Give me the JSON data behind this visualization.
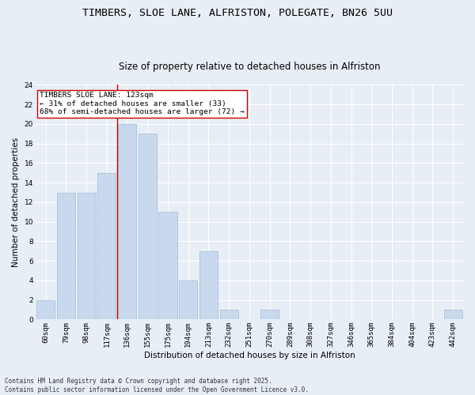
{
  "title": "TIMBERS, SLOE LANE, ALFRISTON, POLEGATE, BN26 5UU",
  "subtitle": "Size of property relative to detached houses in Alfriston",
  "xlabel": "Distribution of detached houses by size in Alfriston",
  "ylabel": "Number of detached properties",
  "categories": [
    "60sqm",
    "79sqm",
    "98sqm",
    "117sqm",
    "136sqm",
    "155sqm",
    "175sqm",
    "194sqm",
    "213sqm",
    "232sqm",
    "251sqm",
    "270sqm",
    "289sqm",
    "308sqm",
    "327sqm",
    "346sqm",
    "365sqm",
    "384sqm",
    "404sqm",
    "423sqm",
    "442sqm"
  ],
  "values": [
    2,
    13,
    13,
    15,
    20,
    19,
    11,
    4,
    7,
    1,
    0,
    1,
    0,
    0,
    0,
    0,
    0,
    0,
    0,
    0,
    1
  ],
  "bar_color": "#c9d9ed",
  "bar_edge_color": "#a0b8d8",
  "background_color": "#e8eef5",
  "grid_color": "#ffffff",
  "vline_x": 3.5,
  "vline_color": "#cc0000",
  "annotation_title": "TIMBERS SLOE LANE: 123sqm",
  "annotation_line1": "← 31% of detached houses are smaller (33)",
  "annotation_line2": "68% of semi-detached houses are larger (72) →",
  "annotation_box_color": "#ffffff",
  "annotation_box_edge": "#cc0000",
  "ylim": [
    0,
    24
  ],
  "yticks": [
    0,
    2,
    4,
    6,
    8,
    10,
    12,
    14,
    16,
    18,
    20,
    22,
    24
  ],
  "footer": "Contains HM Land Registry data © Crown copyright and database right 2025.\nContains public sector information licensed under the Open Government Licence v3.0.",
  "title_fontsize": 9.5,
  "subtitle_fontsize": 8.5,
  "tick_fontsize": 6.5,
  "ylabel_fontsize": 7.5,
  "xlabel_fontsize": 7.5,
  "annotation_fontsize": 6.8,
  "footer_fontsize": 5.5
}
